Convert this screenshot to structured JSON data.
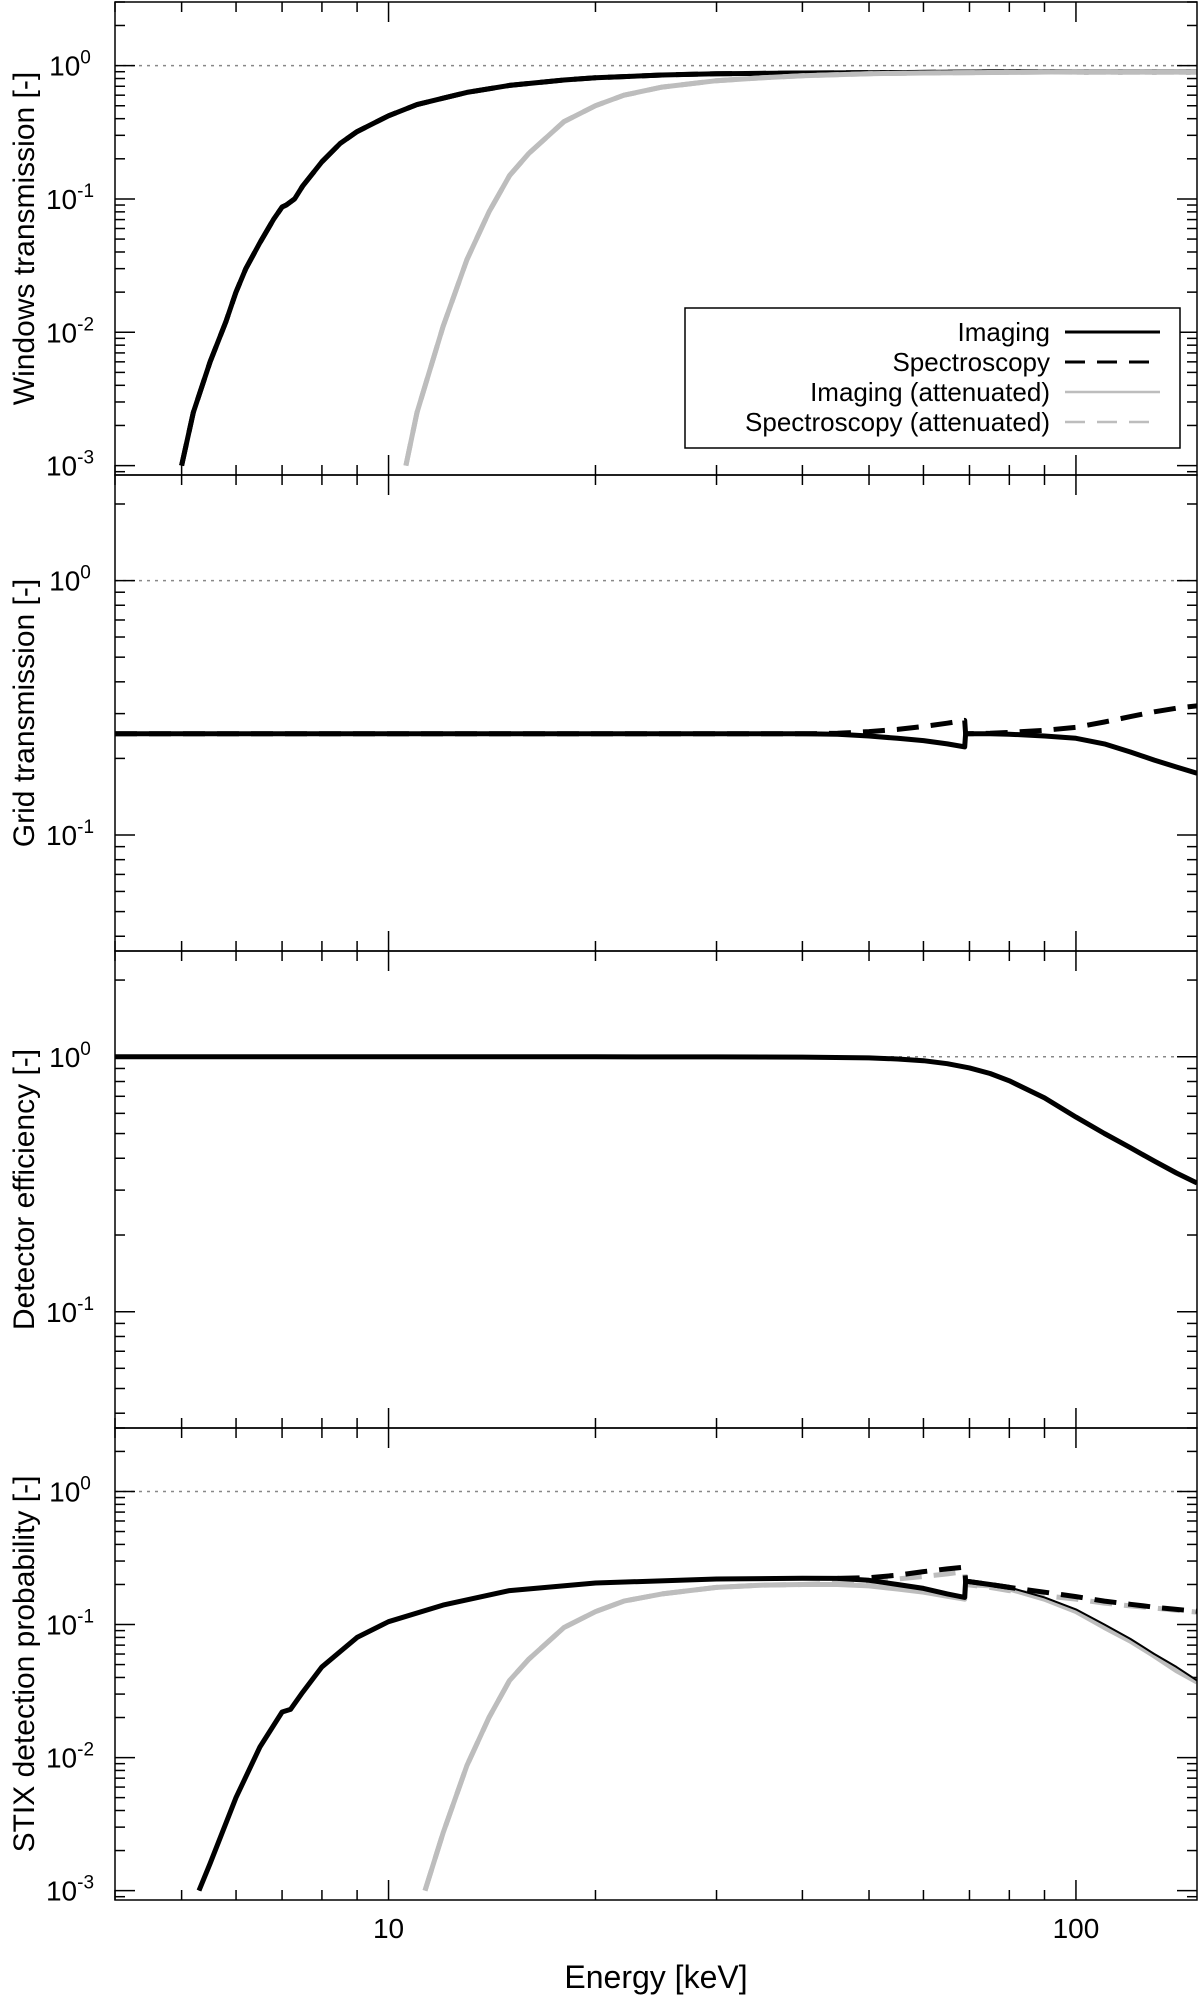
{
  "chart_data": [
    {
      "type": "line",
      "panel": "windows",
      "ylabel": "Windows transmission [-]",
      "xscale": "log",
      "yscale": "log",
      "xlim": [
        4,
        150
      ],
      "ylim": [
        0.00085,
        3.0
      ],
      "ref_line_y": 1,
      "yticks": [
        {
          "base": "10",
          "exp": "0"
        },
        {
          "base": "10",
          "exp": "-1"
        },
        {
          "base": "10",
          "exp": "-2"
        },
        {
          "base": "10",
          "exp": "-3"
        }
      ],
      "legend": {
        "placement": "lower-right",
        "entries": [
          {
            "label": "Imaging",
            "color": "#000000",
            "dash": "solid"
          },
          {
            "label": "Spectroscopy",
            "color": "#000000",
            "dash": "dashed"
          },
          {
            "label": "Imaging (attenuated)",
            "color": "#bdbdbd",
            "dash": "solid"
          },
          {
            "label": "Spectroscopy (attenuated)",
            "color": "#bdbdbd",
            "dash": "dashed"
          }
        ]
      },
      "series": [
        {
          "color": "#000000",
          "dash": "solid",
          "width": 5,
          "x": [
            5.0,
            5.2,
            5.5,
            5.8,
            6.0,
            6.2,
            6.5,
            6.8,
            7.0,
            7.1,
            7.3,
            7.5,
            8.0,
            8.5,
            9.0,
            10,
            11,
            12,
            13,
            15,
            18,
            20,
            25,
            30,
            40,
            60,
            80,
            100,
            150
          ],
          "y": [
            0.001,
            0.0025,
            0.006,
            0.012,
            0.02,
            0.03,
            0.047,
            0.07,
            0.087,
            0.09,
            0.1,
            0.125,
            0.19,
            0.26,
            0.32,
            0.42,
            0.51,
            0.57,
            0.63,
            0.71,
            0.78,
            0.81,
            0.85,
            0.87,
            0.88,
            0.89,
            0.9,
            0.9,
            0.9
          ]
        },
        {
          "color": "#000000",
          "dash": "dashed",
          "width": 5,
          "x": [
            5.0,
            5.2,
            5.5,
            5.8,
            6.0,
            6.2,
            6.5,
            6.8,
            7.0,
            7.1,
            7.3,
            7.5,
            8.0,
            8.5,
            9.0,
            10,
            11,
            12,
            13,
            15,
            18,
            20,
            25,
            30,
            40,
            60,
            80,
            100,
            150
          ],
          "y": [
            0.001,
            0.0025,
            0.006,
            0.012,
            0.02,
            0.03,
            0.047,
            0.07,
            0.087,
            0.09,
            0.1,
            0.125,
            0.19,
            0.26,
            0.32,
            0.42,
            0.51,
            0.57,
            0.63,
            0.71,
            0.78,
            0.81,
            0.85,
            0.87,
            0.88,
            0.89,
            0.9,
            0.9,
            0.9
          ]
        },
        {
          "color": "#bdbdbd",
          "dash": "solid",
          "width": 5,
          "x": [
            10.6,
            11,
            12,
            13,
            14,
            15,
            16,
            18,
            20,
            22,
            25,
            30,
            35,
            40,
            50,
            60,
            80,
            100,
            150
          ],
          "y": [
            0.001,
            0.0025,
            0.011,
            0.035,
            0.08,
            0.15,
            0.22,
            0.38,
            0.5,
            0.6,
            0.69,
            0.77,
            0.81,
            0.84,
            0.87,
            0.88,
            0.89,
            0.9,
            0.9
          ]
        },
        {
          "color": "#bdbdbd",
          "dash": "dashed",
          "width": 5,
          "x": [
            10.6,
            11,
            12,
            13,
            14,
            15,
            16,
            18,
            20,
            22,
            25,
            30,
            35,
            40,
            50,
            60,
            80,
            100,
            150
          ],
          "y": [
            0.001,
            0.0025,
            0.011,
            0.035,
            0.08,
            0.15,
            0.22,
            0.38,
            0.5,
            0.6,
            0.69,
            0.77,
            0.81,
            0.84,
            0.87,
            0.88,
            0.89,
            0.9,
            0.9
          ]
        }
      ]
    },
    {
      "type": "line",
      "panel": "grid",
      "ylabel": "Grid transmission [-]",
      "xscale": "log",
      "yscale": "log",
      "xlim": [
        4,
        150
      ],
      "ylim": [
        0.035,
        2.6
      ],
      "ref_line_y": 1,
      "yticks": [
        {
          "base": "10",
          "exp": "0"
        },
        {
          "base": "10",
          "exp": "-1"
        }
      ],
      "series": [
        {
          "color": "#000000",
          "dash": "solid",
          "width": 5,
          "x": [
            4,
            10,
            20,
            40,
            45,
            50,
            55,
            60,
            65,
            68.9,
            69.1,
            75,
            80,
            90,
            100,
            110,
            120,
            130,
            140,
            150
          ],
          "y": [
            0.25,
            0.25,
            0.25,
            0.25,
            0.249,
            0.245,
            0.24,
            0.235,
            0.228,
            0.222,
            0.25,
            0.25,
            0.249,
            0.245,
            0.24,
            0.228,
            0.212,
            0.197,
            0.185,
            0.175
          ]
        },
        {
          "color": "#000000",
          "dash": "dashed",
          "width": 5,
          "x": [
            4,
            10,
            20,
            40,
            45,
            50,
            55,
            60,
            65,
            68.9,
            69.1,
            75,
            80,
            90,
            100,
            110,
            120,
            130,
            140,
            150
          ],
          "y": [
            0.25,
            0.25,
            0.25,
            0.25,
            0.251,
            0.255,
            0.26,
            0.267,
            0.275,
            0.282,
            0.25,
            0.251,
            0.253,
            0.258,
            0.265,
            0.278,
            0.292,
            0.305,
            0.315,
            0.322
          ]
        }
      ]
    },
    {
      "type": "line",
      "panel": "detector",
      "ylabel": "Detector efficiency [-]",
      "xscale": "log",
      "yscale": "log",
      "xlim": [
        4,
        150
      ],
      "ylim": [
        0.035,
        2.6
      ],
      "ref_line_y": 1,
      "yticks": [
        {
          "base": "10",
          "exp": "0"
        },
        {
          "base": "10",
          "exp": "-1"
        }
      ],
      "series": [
        {
          "color": "#000000",
          "dash": "solid",
          "width": 5,
          "x": [
            4,
            10,
            20,
            30,
            40,
            50,
            55,
            60,
            65,
            70,
            75,
            80,
            90,
            100,
            110,
            120,
            130,
            140,
            150
          ],
          "y": [
            1.0,
            1.0,
            1.0,
            0.999,
            0.997,
            0.99,
            0.98,
            0.965,
            0.94,
            0.905,
            0.86,
            0.805,
            0.69,
            0.58,
            0.5,
            0.44,
            0.39,
            0.35,
            0.32
          ]
        }
      ]
    },
    {
      "type": "line",
      "panel": "stix",
      "ylabel": "STIX detection probability [-]",
      "xlabel": "Energy [keV]",
      "xscale": "log",
      "yscale": "log",
      "xlim": [
        4,
        150
      ],
      "ylim": [
        0.00085,
        3.0
      ],
      "ref_line_y": 1,
      "xticks": [
        {
          "value": 10,
          "label": "10"
        },
        {
          "value": 100,
          "label": "100"
        }
      ],
      "yticks": [
        {
          "base": "10",
          "exp": "0"
        },
        {
          "base": "10",
          "exp": "-1"
        },
        {
          "base": "10",
          "exp": "-2"
        },
        {
          "base": "10",
          "exp": "-3"
        }
      ],
      "series": [
        {
          "color": "#bdbdbd",
          "dash": "solid",
          "width": 5,
          "x": [
            11.3,
            12,
            13,
            14,
            15,
            16,
            18,
            20,
            22,
            25,
            30,
            35,
            40,
            45,
            50,
            55,
            60,
            65,
            68.9,
            69.1,
            75,
            80,
            90,
            100,
            110,
            120,
            130,
            140,
            150
          ],
          "y": [
            0.001,
            0.0027,
            0.0087,
            0.02,
            0.038,
            0.055,
            0.095,
            0.125,
            0.15,
            0.17,
            0.19,
            0.198,
            0.2,
            0.2,
            0.195,
            0.185,
            0.175,
            0.163,
            0.155,
            0.2,
            0.195,
            0.185,
            0.155,
            0.125,
            0.095,
            0.075,
            0.058,
            0.045,
            0.037
          ]
        },
        {
          "color": "#bdbdbd",
          "dash": "dashed",
          "width": 5,
          "x": [
            11.3,
            12,
            13,
            14,
            15,
            16,
            18,
            20,
            22,
            25,
            30,
            35,
            40,
            45,
            50,
            55,
            60,
            65,
            68.9,
            69.1,
            75,
            80,
            90,
            100,
            110,
            120,
            130,
            140,
            150
          ],
          "y": [
            0.001,
            0.0027,
            0.0087,
            0.02,
            0.038,
            0.055,
            0.095,
            0.125,
            0.15,
            0.17,
            0.19,
            0.198,
            0.2,
            0.205,
            0.21,
            0.22,
            0.23,
            0.24,
            0.25,
            0.2,
            0.19,
            0.18,
            0.165,
            0.155,
            0.145,
            0.138,
            0.133,
            0.128,
            0.124
          ]
        },
        {
          "color": "#000000",
          "dash": "solid",
          "width": 2,
          "x": [
            5.3,
            5.5,
            6,
            6.5,
            7.0,
            7.2,
            7.5,
            8,
            9,
            10,
            12,
            15,
            20,
            30,
            40,
            45,
            50,
            55,
            60,
            65,
            68.9,
            69.1,
            75,
            80,
            90,
            100,
            110,
            120,
            130,
            140,
            150
          ],
          "y": [
            0.001,
            0.0016,
            0.005,
            0.012,
            0.022,
            0.023,
            0.031,
            0.048,
            0.08,
            0.105,
            0.14,
            0.18,
            0.205,
            0.22,
            0.223,
            0.222,
            0.215,
            0.2,
            0.187,
            0.17,
            0.16,
            0.212,
            0.2,
            0.19,
            0.16,
            0.13,
            0.1,
            0.078,
            0.06,
            0.048,
            0.038
          ]
        },
        {
          "color": "#000000",
          "dash": "solid",
          "width": 5,
          "x": [
            5.3,
            5.5,
            6,
            6.5,
            7.0,
            7.2,
            7.5,
            8,
            9,
            10,
            12,
            15,
            20,
            30,
            40,
            45,
            50,
            55,
            60,
            65,
            68.9,
            69.1,
            75,
            80
          ],
          "y": [
            0.001,
            0.0016,
            0.005,
            0.012,
            0.022,
            0.023,
            0.031,
            0.048,
            0.08,
            0.105,
            0.14,
            0.18,
            0.205,
            0.22,
            0.223,
            0.222,
            0.215,
            0.2,
            0.187,
            0.17,
            0.16,
            0.212,
            0.2,
            0.19
          ]
        },
        {
          "color": "#000000",
          "dash": "dashed",
          "width": 5,
          "x": [
            45,
            50,
            55,
            60,
            65,
            68.9,
            69.1,
            75,
            80,
            90,
            100,
            110,
            120,
            130,
            140,
            150
          ],
          "y": [
            0.222,
            0.225,
            0.235,
            0.25,
            0.262,
            0.27,
            0.212,
            0.2,
            0.19,
            0.175,
            0.162,
            0.15,
            0.142,
            0.135,
            0.13,
            0.126
          ]
        }
      ]
    }
  ]
}
